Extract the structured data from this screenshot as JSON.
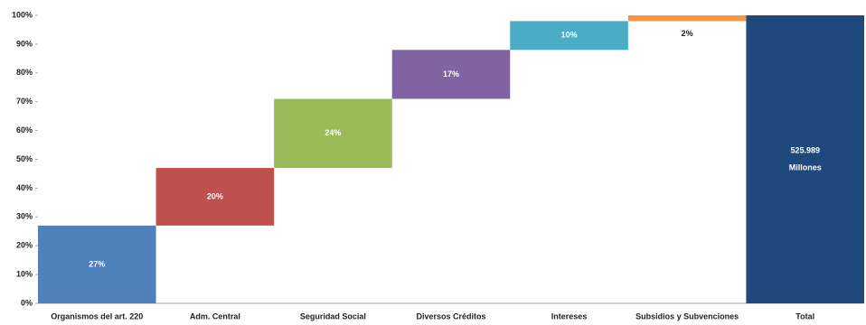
{
  "chart_data": {
    "type": "waterfall",
    "categories": [
      "Organismos del art. 220",
      "Adm. Central",
      "Seguridad Social",
      "Diversos Créditos",
      "Intereses",
      "Subsidios y Subvenciones"
    ],
    "values": [
      27,
      20,
      24,
      17,
      10,
      2
    ],
    "value_labels": [
      "27%",
      "20%",
      "24%",
      "17%",
      "10%",
      "2%"
    ],
    "colors": [
      "#4f81bd",
      "#c0504d",
      "#9bbb59",
      "#8064a2",
      "#4bacc6",
      "#f79646"
    ],
    "total": {
      "name": "Total",
      "value": 100,
      "color": "#1f497d",
      "annotation": [
        "525.989",
        "Millones"
      ]
    },
    "ylim": [
      0,
      100
    ],
    "yticks": [
      {
        "value": 0,
        "label": "0%"
      },
      {
        "value": 10,
        "label": "10%"
      },
      {
        "value": 20,
        "label": "20%"
      },
      {
        "value": 30,
        "label": "30%"
      },
      {
        "value": 40,
        "label": "40%"
      },
      {
        "value": 50,
        "label": "50%"
      },
      {
        "value": 60,
        "label": "60%"
      },
      {
        "value": 70,
        "label": "70%"
      },
      {
        "value": 80,
        "label": "80%"
      },
      {
        "value": 90,
        "label": "90%"
      },
      {
        "value": 100,
        "label": "100%"
      }
    ]
  }
}
